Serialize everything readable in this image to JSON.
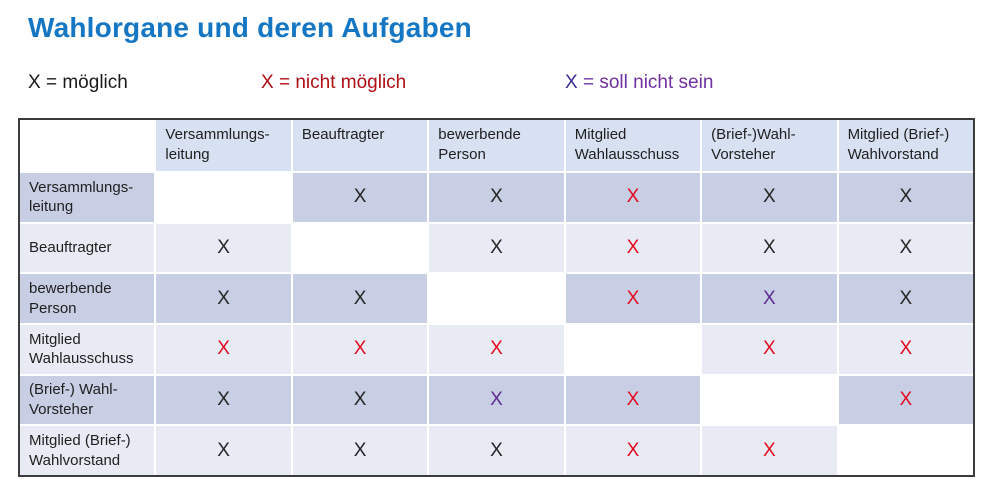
{
  "title": "Wahlorgane und deren Aufgaben",
  "colors": {
    "title": "#1577c4",
    "text": "#1f1f1f",
    "mark_possible": "#262626",
    "mark_not_possible": "#e30b20",
    "mark_should_not": "#5f2d91",
    "header_bg": "#d8e1f2",
    "row_dark_bg": "#c8cee3",
    "row_light_bg": "#e9ebf4"
  },
  "legend": {
    "items": [
      {
        "symbol": "X",
        "eq": "=",
        "label": "möglich",
        "type": "possible",
        "symbol_color": "#1a1a1a",
        "label_color": "#1a1a1a"
      },
      {
        "symbol": "X",
        "eq": "=",
        "label": "nicht möglich",
        "type": "not_possible",
        "symbol_color": "#b00e15",
        "label_color": "#b00e15"
      },
      {
        "symbol": "X",
        "eq": "=",
        "label": "soll nicht sein",
        "type": "should_not",
        "symbol_color": "#3a2f91",
        "label_color": "#7030a0"
      }
    ]
  },
  "table": {
    "corner": "",
    "mark": "X",
    "col_headers": [
      "Versammlungs-leitung",
      "Beauftragter",
      "bewerbende Person",
      "Mitglied Wahlausschuss",
      "(Brief-)Wahl-Vorsteher",
      "Mitglied (Brief-) Wahlvorstand"
    ],
    "row_headers": [
      "Versammlungs-leitung",
      "Beauftragter",
      "bewerbende Person",
      "Mitglied Wahlausschuss",
      "(Brief-) Wahl-Vorsteher",
      "Mitglied (Brief-) Wahlvorstand"
    ],
    "cells": [
      [
        "",
        "possible",
        "possible",
        "not_possible",
        "possible",
        "possible"
      ],
      [
        "possible",
        "",
        "possible",
        "not_possible",
        "possible",
        "possible"
      ],
      [
        "possible",
        "possible",
        "",
        "not_possible",
        "should_not",
        "possible"
      ],
      [
        "not_possible",
        "not_possible",
        "not_possible",
        "",
        "not_possible",
        "not_possible"
      ],
      [
        "possible",
        "possible",
        "should_not",
        "not_possible",
        "",
        "not_possible"
      ],
      [
        "possible",
        "possible",
        "possible",
        "not_possible",
        "not_possible",
        ""
      ]
    ]
  }
}
